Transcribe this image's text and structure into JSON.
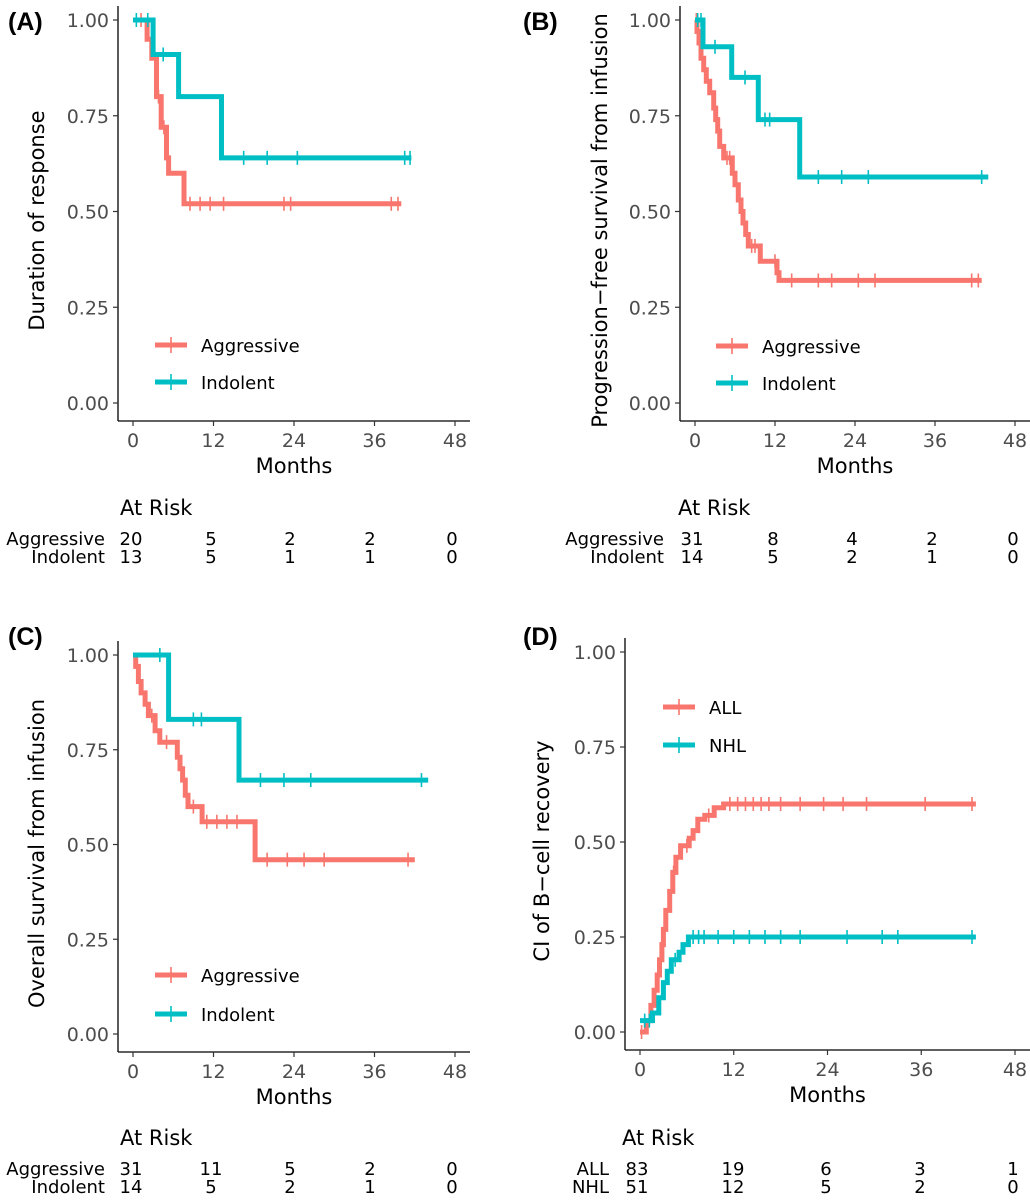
{
  "colors": {
    "red": "#F8766D",
    "teal": "#00BFC4"
  },
  "risk_header": "At Risk",
  "chart_data": [
    {
      "type": "line",
      "panel_label": "(A)",
      "xlabel": "Months",
      "ylabel": "Duration of response",
      "xlim": [
        0,
        48
      ],
      "ylim": [
        0,
        1
      ],
      "xticks": [
        "0",
        "12",
        "24",
        "36",
        "48"
      ],
      "yticks": [
        "0.00",
        "0.25",
        "0.50",
        "0.75",
        "1.00"
      ],
      "legend_position": "bottom-left",
      "series": [
        {
          "name": "Aggressive",
          "color": "#F8766D",
          "steps": [
            [
              0,
              1.0
            ],
            [
              2.1,
              0.95
            ],
            [
              2.8,
              0.9
            ],
            [
              3.5,
              0.8
            ],
            [
              4.2,
              0.72
            ],
            [
              5.0,
              0.64
            ],
            [
              5.3,
              0.6
            ],
            [
              7.6,
              0.52
            ],
            [
              40.0,
              0.52
            ]
          ],
          "censors": [
            [
              1.2,
              1.0
            ],
            [
              3.8,
              0.8
            ],
            [
              4.6,
              0.72
            ],
            [
              8.5,
              0.52
            ],
            [
              10.0,
              0.52
            ],
            [
              11.5,
              0.52
            ],
            [
              13.5,
              0.52
            ],
            [
              22.5,
              0.52
            ],
            [
              23.5,
              0.52
            ],
            [
              38.5,
              0.52
            ],
            [
              39.5,
              0.52
            ]
          ]
        },
        {
          "name": "Indolent",
          "color": "#00BFC4",
          "steps": [
            [
              0,
              1.0
            ],
            [
              3.0,
              0.91
            ],
            [
              6.8,
              0.8
            ],
            [
              13.2,
              0.64
            ],
            [
              41.5,
              0.64
            ]
          ],
          "censors": [
            [
              0.5,
              1.0
            ],
            [
              2.2,
              1.0
            ],
            [
              4.5,
              0.91
            ],
            [
              16.5,
              0.64
            ],
            [
              20.0,
              0.64
            ],
            [
              24.5,
              0.64
            ],
            [
              40.5,
              0.64
            ],
            [
              41.3,
              0.64
            ]
          ]
        }
      ],
      "at_risk": {
        "times": [
          0,
          12,
          24,
          36,
          48
        ],
        "rows": [
          {
            "label": "Aggressive",
            "counts": [
              "20",
              "5",
              "2",
              "2",
              "0"
            ]
          },
          {
            "label": "Indolent",
            "counts": [
              "13",
              "5",
              "1",
              "1",
              "0"
            ]
          }
        ]
      }
    },
    {
      "type": "line",
      "panel_label": "(B)",
      "xlabel": "Months",
      "ylabel": "Progression−free survival from infusion",
      "xlim": [
        0,
        48
      ],
      "ylim": [
        0,
        1
      ],
      "xticks": [
        "0",
        "12",
        "24",
        "36",
        "48"
      ],
      "yticks": [
        "0.00",
        "0.25",
        "0.50",
        "0.75",
        "1.00"
      ],
      "legend_position": "bottom-left",
      "series": [
        {
          "name": "Aggressive",
          "color": "#F8766D",
          "steps": [
            [
              0,
              1.0
            ],
            [
              0.3,
              0.97
            ],
            [
              0.6,
              0.94
            ],
            [
              0.9,
              0.9
            ],
            [
              1.3,
              0.87
            ],
            [
              1.7,
              0.84
            ],
            [
              2.2,
              0.81
            ],
            [
              2.8,
              0.77
            ],
            [
              3.1,
              0.74
            ],
            [
              3.4,
              0.71
            ],
            [
              3.7,
              0.67
            ],
            [
              4.3,
              0.64
            ],
            [
              5.6,
              0.6
            ],
            [
              6.0,
              0.57
            ],
            [
              6.5,
              0.53
            ],
            [
              6.9,
              0.5
            ],
            [
              7.2,
              0.47
            ],
            [
              7.6,
              0.44
            ],
            [
              8.0,
              0.41
            ],
            [
              9.8,
              0.37
            ],
            [
              12.3,
              0.34
            ],
            [
              12.6,
              0.32
            ],
            [
              43.0,
              0.32
            ]
          ],
          "censors": [
            [
              0.2,
              1.0
            ],
            [
              4.8,
              0.64
            ],
            [
              5.2,
              0.64
            ],
            [
              8.5,
              0.41
            ],
            [
              9.0,
              0.41
            ],
            [
              12.0,
              0.37
            ],
            [
              14.5,
              0.32
            ],
            [
              18.5,
              0.32
            ],
            [
              20.5,
              0.32
            ],
            [
              24.5,
              0.32
            ],
            [
              27.0,
              0.32
            ],
            [
              41.5,
              0.32
            ],
            [
              42.5,
              0.32
            ]
          ]
        },
        {
          "name": "Indolent",
          "color": "#00BFC4",
          "steps": [
            [
              0,
              1.0
            ],
            [
              1.2,
              0.93
            ],
            [
              5.5,
              0.85
            ],
            [
              9.5,
              0.74
            ],
            [
              15.7,
              0.59
            ],
            [
              44.0,
              0.59
            ]
          ],
          "censors": [
            [
              0.4,
              1.0
            ],
            [
              0.9,
              1.0
            ],
            [
              3.0,
              0.93
            ],
            [
              7.5,
              0.85
            ],
            [
              10.5,
              0.74
            ],
            [
              11.2,
              0.74
            ],
            [
              18.5,
              0.59
            ],
            [
              22.0,
              0.59
            ],
            [
              26.0,
              0.59
            ],
            [
              43.0,
              0.59
            ]
          ]
        }
      ],
      "at_risk": {
        "times": [
          0,
          12,
          24,
          36,
          48
        ],
        "rows": [
          {
            "label": "Aggressive",
            "counts": [
              "31",
              "8",
              "4",
              "2",
              "0"
            ]
          },
          {
            "label": "Indolent",
            "counts": [
              "14",
              "5",
              "2",
              "1",
              "0"
            ]
          }
        ]
      }
    },
    {
      "type": "line",
      "panel_label": "(C)",
      "xlabel": "Months",
      "ylabel": "Overall survival from infusion",
      "xlim": [
        0,
        48
      ],
      "ylim": [
        0,
        1
      ],
      "xticks": [
        "0",
        "12",
        "24",
        "36",
        "48"
      ],
      "yticks": [
        "0.00",
        "0.25",
        "0.50",
        "0.75",
        "1.00"
      ],
      "legend_position": "bottom-left",
      "series": [
        {
          "name": "Aggressive",
          "color": "#F8766D",
          "steps": [
            [
              0,
              1.0
            ],
            [
              0.4,
              0.97
            ],
            [
              0.8,
              0.93
            ],
            [
              1.2,
              0.9
            ],
            [
              1.8,
              0.87
            ],
            [
              2.3,
              0.84
            ],
            [
              3.3,
              0.8
            ],
            [
              4.0,
              0.77
            ],
            [
              6.6,
              0.73
            ],
            [
              7.0,
              0.7
            ],
            [
              7.4,
              0.67
            ],
            [
              7.8,
              0.63
            ],
            [
              8.2,
              0.6
            ],
            [
              10.3,
              0.56
            ],
            [
              18.2,
              0.46
            ],
            [
              42.0,
              0.46
            ]
          ],
          "censors": [
            [
              2.8,
              0.84
            ],
            [
              5.0,
              0.77
            ],
            [
              9.0,
              0.6
            ],
            [
              11.0,
              0.56
            ],
            [
              12.5,
              0.56
            ],
            [
              14.0,
              0.56
            ],
            [
              15.5,
              0.56
            ],
            [
              20.0,
              0.46
            ],
            [
              23.0,
              0.46
            ],
            [
              25.5,
              0.46
            ],
            [
              28.5,
              0.46
            ],
            [
              41.0,
              0.46
            ]
          ]
        },
        {
          "name": "Indolent",
          "color": "#00BFC4",
          "steps": [
            [
              0,
              1.0
            ],
            [
              5.3,
              0.83
            ],
            [
              15.8,
              0.67
            ],
            [
              44.0,
              0.67
            ]
          ],
          "censors": [
            [
              4.0,
              1.0
            ],
            [
              9.0,
              0.83
            ],
            [
              10.2,
              0.83
            ],
            [
              19.0,
              0.67
            ],
            [
              22.5,
              0.67
            ],
            [
              26.5,
              0.67
            ],
            [
              43.0,
              0.67
            ]
          ]
        }
      ],
      "at_risk": {
        "times": [
          0,
          12,
          24,
          36,
          48
        ],
        "rows": [
          {
            "label": "Aggressive",
            "counts": [
              "31",
              "11",
              "5",
              "2",
              "0"
            ]
          },
          {
            "label": "Indolent",
            "counts": [
              "14",
              "5",
              "2",
              "1",
              "0"
            ]
          }
        ]
      }
    },
    {
      "type": "line",
      "panel_label": "(D)",
      "xlabel": "Months",
      "ylabel": "CI of B−cell recovery",
      "xlim": [
        0,
        48
      ],
      "ylim": [
        0,
        1
      ],
      "xticks": [
        "0",
        "12",
        "24",
        "36",
        "48"
      ],
      "yticks": [
        "0.00",
        "0.25",
        "0.50",
        "0.75",
        "1.00"
      ],
      "legend_position": "top-left",
      "series": [
        {
          "name": "ALL",
          "color": "#F8766D",
          "steps": [
            [
              0,
              0.0
            ],
            [
              0.8,
              0.03
            ],
            [
              1.4,
              0.07
            ],
            [
              1.8,
              0.11
            ],
            [
              2.2,
              0.15
            ],
            [
              2.5,
              0.19
            ],
            [
              2.8,
              0.23
            ],
            [
              3.0,
              0.27
            ],
            [
              3.3,
              0.32
            ],
            [
              3.8,
              0.37
            ],
            [
              4.2,
              0.42
            ],
            [
              4.6,
              0.46
            ],
            [
              5.2,
              0.49
            ],
            [
              6.3,
              0.51
            ],
            [
              6.8,
              0.53
            ],
            [
              7.4,
              0.56
            ],
            [
              8.3,
              0.57
            ],
            [
              9.5,
              0.59
            ],
            [
              10.7,
              0.6
            ],
            [
              43.0,
              0.6
            ]
          ],
          "censors": [
            [
              0.2,
              0.0
            ],
            [
              4.3,
              0.42
            ],
            [
              6.0,
              0.49
            ],
            [
              8.8,
              0.57
            ],
            [
              11.5,
              0.6
            ],
            [
              12.5,
              0.6
            ],
            [
              13.5,
              0.6
            ],
            [
              14.5,
              0.6
            ],
            [
              15.5,
              0.6
            ],
            [
              16.5,
              0.6
            ],
            [
              18.0,
              0.6
            ],
            [
              20.5,
              0.6
            ],
            [
              23.5,
              0.6
            ],
            [
              26.0,
              0.6
            ],
            [
              29.0,
              0.6
            ],
            [
              36.5,
              0.6
            ],
            [
              42.5,
              0.6
            ]
          ]
        },
        {
          "name": "NHL",
          "color": "#00BFC4",
          "steps": [
            [
              0,
              0.03
            ],
            [
              1.6,
              0.05
            ],
            [
              2.4,
              0.09
            ],
            [
              3.0,
              0.13
            ],
            [
              3.5,
              0.16
            ],
            [
              4.0,
              0.19
            ],
            [
              5.0,
              0.21
            ],
            [
              5.5,
              0.23
            ],
            [
              6.2,
              0.25
            ],
            [
              43.0,
              0.25
            ]
          ],
          "censors": [
            [
              0.6,
              0.03
            ],
            [
              1.2,
              0.03
            ],
            [
              4.5,
              0.19
            ],
            [
              6.8,
              0.25
            ],
            [
              7.5,
              0.25
            ],
            [
              8.2,
              0.25
            ],
            [
              10.0,
              0.25
            ],
            [
              12.0,
              0.25
            ],
            [
              14.0,
              0.25
            ],
            [
              16.0,
              0.25
            ],
            [
              18.0,
              0.25
            ],
            [
              20.5,
              0.25
            ],
            [
              26.5,
              0.25
            ],
            [
              31.0,
              0.25
            ],
            [
              33.0,
              0.25
            ],
            [
              42.5,
              0.25
            ]
          ]
        }
      ],
      "at_risk": {
        "times": [
          0,
          12,
          24,
          36,
          48
        ],
        "rows": [
          {
            "label": "ALL",
            "counts": [
              "83",
              "19",
              "6",
              "3",
              "1"
            ]
          },
          {
            "label": "NHL",
            "counts": [
              "51",
              "12",
              "5",
              "2",
              "0"
            ]
          }
        ]
      }
    }
  ]
}
